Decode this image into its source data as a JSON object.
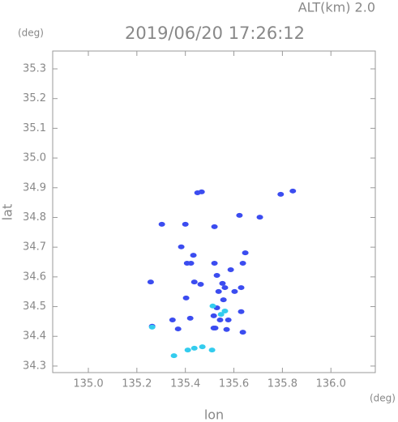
{
  "chart_data": {
    "type": "scatter",
    "title": "2019/06/20 17:26:12",
    "subtitle": "ALT(km) 2.0",
    "x_label": "lon",
    "y_label": "lat",
    "x_unit": "(deg)",
    "y_unit": "(deg)",
    "xlim": [
      134.853,
      136.183
    ],
    "ylim": [
      34.278,
      35.36
    ],
    "xticks": [
      {
        "value": 135.0,
        "label": "135.0"
      },
      135.2,
      135.4,
      135.6,
      135.8,
      {
        "value": 136.0,
        "label": "136.0"
      }
    ],
    "yticks": [
      34.3,
      34.4,
      34.5,
      34.6,
      34.7,
      34.8,
      34.9,
      {
        "value": 35.0,
        "label": "35.0"
      },
      35.1,
      35.2,
      35.3
    ],
    "grid": false,
    "series": [
      {
        "color": "#3b4cf0",
        "x": [
          135.467,
          135.45,
          135.793,
          135.843,
          135.4,
          135.303,
          135.52,
          135.707,
          135.623,
          135.383,
          135.433,
          135.423,
          135.407,
          135.647,
          135.637,
          135.587,
          135.52,
          135.53,
          135.553,
          135.537,
          135.557,
          135.53,
          135.543,
          135.523,
          135.57,
          135.577,
          135.63,
          135.63,
          135.603,
          135.563,
          135.437,
          135.257,
          135.403,
          135.517,
          135.347,
          135.263,
          135.37,
          135.517,
          135.637,
          135.42,
          135.463
        ],
        "y": [
          34.886,
          34.883,
          34.878,
          34.889,
          34.777,
          34.777,
          34.769,
          34.801,
          34.807,
          34.701,
          34.673,
          34.646,
          34.646,
          34.681,
          34.646,
          34.624,
          34.646,
          34.605,
          34.578,
          34.551,
          34.523,
          34.496,
          34.455,
          34.428,
          34.423,
          34.455,
          34.564,
          34.483,
          34.551,
          34.564,
          34.583,
          34.583,
          34.529,
          34.469,
          34.455,
          34.434,
          34.425,
          34.428,
          34.414,
          34.461,
          34.575
        ]
      },
      {
        "color": "#33ccee",
        "x": [
          135.41,
          135.437,
          135.47,
          135.51,
          135.353,
          135.547,
          135.513,
          135.563,
          135.263
        ],
        "y": [
          34.354,
          34.36,
          34.365,
          34.354,
          34.335,
          34.474,
          34.502,
          34.485,
          34.431
        ]
      }
    ]
  }
}
